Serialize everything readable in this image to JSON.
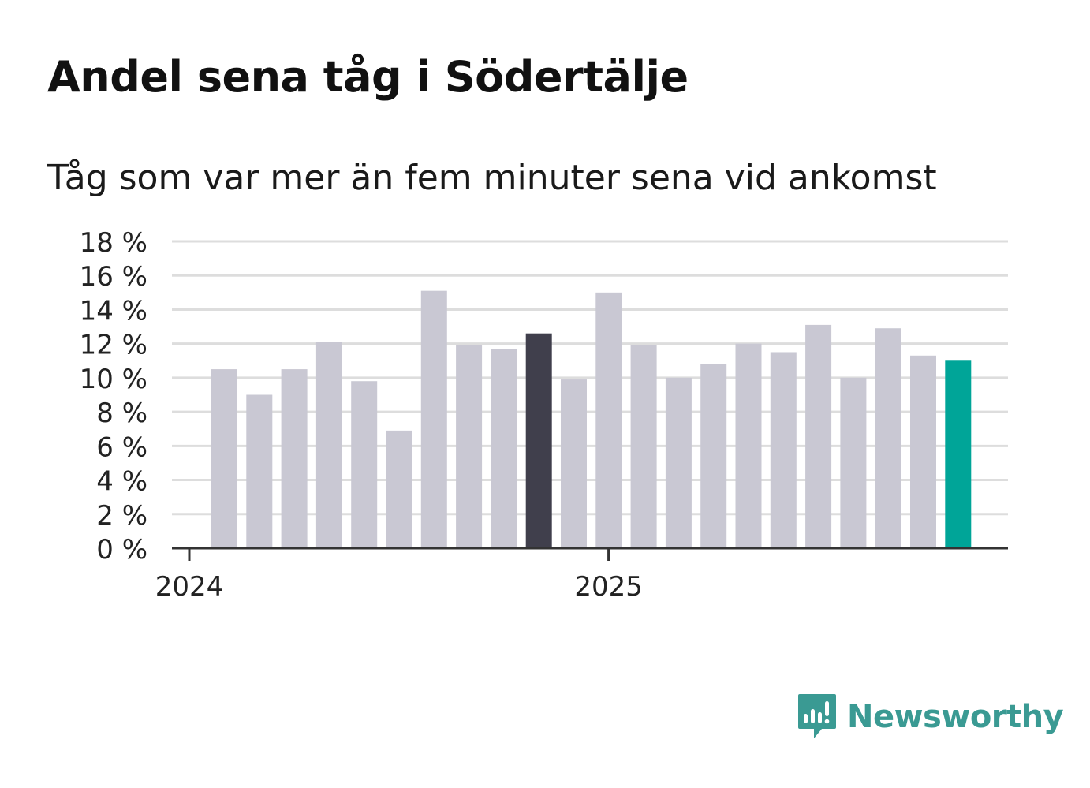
{
  "header": {
    "title": "Andel sena tåg i Södertälje",
    "subtitle": "Tåg som var mer än fem minuter sena vid ankomst"
  },
  "brand": {
    "name": "Newsworthy",
    "color": "#3a9a93"
  },
  "colors": {
    "bar_default": "#c9c8d3",
    "bar_highlight_dark": "#403f4c",
    "bar_highlight_latest": "#00a598",
    "grid": "#dddddd",
    "axis": "#333333"
  },
  "chart_data": {
    "type": "bar",
    "title": "Andel sena tåg i Södertälje",
    "subtitle": "Tåg som var mer än fem minuter sena vid ankomst",
    "xlabel": "",
    "ylabel": "",
    "ylim": [
      0,
      18
    ],
    "yticks": [
      0,
      2,
      4,
      6,
      8,
      10,
      12,
      14,
      16,
      18
    ],
    "ytick_labels": [
      "0 %",
      "2 %",
      "4 %",
      "6 %",
      "8 %",
      "10 %",
      "12 %",
      "14 %",
      "16 %",
      "18 %"
    ],
    "xtick_labels": [
      {
        "label": "2024",
        "index": 0
      },
      {
        "label": "2025",
        "index": 12
      }
    ],
    "grid": true,
    "series": [
      {
        "name": "Andel sena tåg",
        "values": [
          10.5,
          9.0,
          10.5,
          12.1,
          9.8,
          6.9,
          15.1,
          11.9,
          11.7,
          12.6,
          9.9,
          15.0,
          11.9,
          10.0,
          10.8,
          12.0,
          11.5,
          13.1,
          10.0,
          12.9,
          11.3,
          11.0
        ]
      }
    ],
    "highlights": [
      {
        "index": 9,
        "color": "#403f4c"
      },
      {
        "index": 21,
        "color": "#00a598"
      }
    ]
  }
}
